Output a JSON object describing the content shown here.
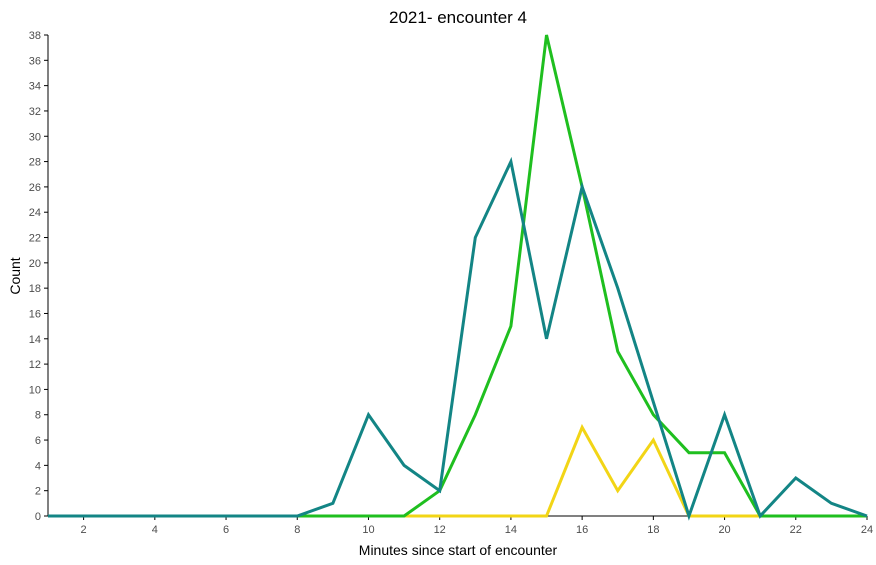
{
  "chart_data": {
    "type": "line",
    "title": "2021- encounter 4",
    "xlabel": "Minutes since start of encounter",
    "ylabel": "Count",
    "xlim": [
      1,
      24
    ],
    "ylim": [
      0,
      38
    ],
    "xticks": [
      2,
      4,
      6,
      8,
      10,
      12,
      14,
      16,
      18,
      20,
      22,
      24
    ],
    "yticks": [
      0,
      2,
      4,
      6,
      8,
      10,
      12,
      14,
      16,
      18,
      20,
      22,
      24,
      26,
      28,
      30,
      32,
      34,
      36,
      38
    ],
    "grid": false,
    "legend": "none",
    "x": [
      1,
      2,
      3,
      4,
      5,
      6,
      7,
      8,
      9,
      10,
      11,
      12,
      13,
      14,
      15,
      16,
      17,
      18,
      19,
      20,
      21,
      22,
      23,
      24
    ],
    "series": [
      {
        "color": "#f2d516",
        "values": [
          0,
          0,
          0,
          0,
          0,
          0,
          0,
          0,
          0,
          0,
          0,
          0,
          0,
          0,
          0,
          7,
          2,
          6,
          0,
          0,
          0,
          0,
          0,
          0
        ]
      },
      {
        "color": "#1fbf1f",
        "values": [
          0,
          0,
          0,
          0,
          0,
          0,
          0,
          0,
          0,
          0,
          0,
          2,
          8,
          15,
          38,
          26,
          13,
          8,
          5,
          5,
          0,
          0,
          0,
          0
        ]
      },
      {
        "color": "#138585",
        "values": [
          0,
          0,
          0,
          0,
          0,
          0,
          0,
          0,
          1,
          8,
          4,
          2,
          22,
          28,
          14,
          26,
          18,
          9,
          0,
          8,
          0,
          3,
          1,
          0
        ]
      }
    ]
  }
}
